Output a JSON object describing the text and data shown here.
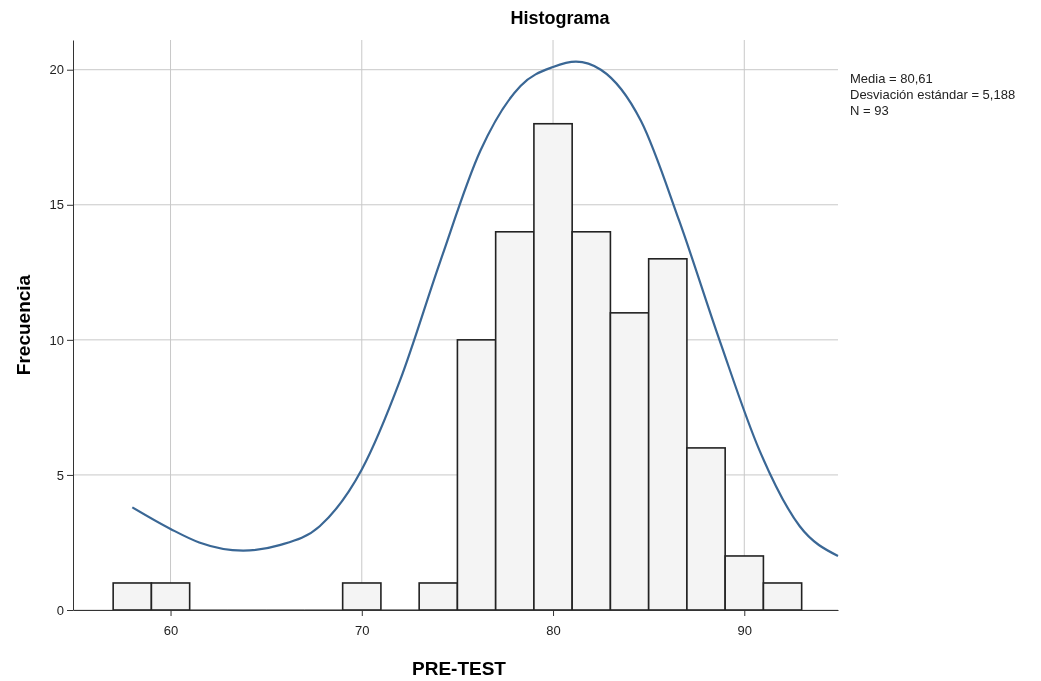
{
  "chart_data": {
    "type": "histogram",
    "title": "Histograma",
    "xlabel": "PRE-TEST",
    "ylabel": "Frecuencia",
    "bins": [
      57,
      59,
      61,
      63,
      65,
      67,
      69,
      71,
      73,
      75,
      77,
      79,
      81,
      83,
      85,
      87,
      89,
      91,
      93
    ],
    "values": [
      1,
      1,
      null,
      null,
      null,
      null,
      1,
      null,
      1,
      10,
      14,
      18,
      14,
      11,
      13,
      6,
      2,
      1
    ],
    "color": "#f4f4f4",
    "series": [
      {
        "type": "line",
        "color": "#3a6795",
        "x": [
          58,
          60,
          61.5,
          63.8,
          65.7,
          67.8,
          70,
          72,
          74.1,
          76.2,
          78.3,
          80,
          81.2,
          82.5,
          84.6,
          86.6,
          88.7,
          90.8,
          92.9,
          94.9
        ],
        "values": [
          3.8,
          3,
          2.5,
          2.2,
          2.4,
          3.1,
          5.2,
          8.5,
          12.9,
          17,
          19.4,
          20.1,
          20.3,
          20,
          18.1,
          14.4,
          10,
          5.9,
          3.1,
          2
        ]
      }
    ],
    "xlim": [
      54.9,
      94.9
    ],
    "xticks": [
      60,
      70,
      80,
      90
    ],
    "ylim": [
      0,
      21.1
    ],
    "yticks": [
      0,
      5,
      10,
      15,
      20
    ],
    "grid": true,
    "annotations": [
      "Media = 80,61",
      "Desviación estándar = 5,188",
      "N = 93"
    ]
  }
}
